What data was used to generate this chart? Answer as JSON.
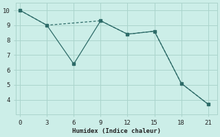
{
  "line1_x": [
    0,
    3,
    6,
    9,
    12,
    15,
    18,
    21
  ],
  "line1_y": [
    10.0,
    9.0,
    6.4,
    9.3,
    8.4,
    8.6,
    5.1,
    3.7
  ],
  "line2_x": [
    0,
    3,
    9,
    12,
    15,
    18,
    21
  ],
  "line2_y": [
    10.0,
    9.0,
    9.3,
    8.4,
    8.6,
    5.1,
    3.7
  ],
  "color": "#2d6b68",
  "bg_color": "#cceee8",
  "grid_color": "#aad4cc",
  "xlabel": "Humidex (Indice chaleur)",
  "xlim": [
    -0.5,
    22
  ],
  "ylim": [
    3.0,
    10.5
  ],
  "xticks": [
    0,
    3,
    6,
    9,
    12,
    15,
    18,
    21
  ],
  "yticks": [
    4,
    5,
    6,
    7,
    8,
    9,
    10
  ]
}
